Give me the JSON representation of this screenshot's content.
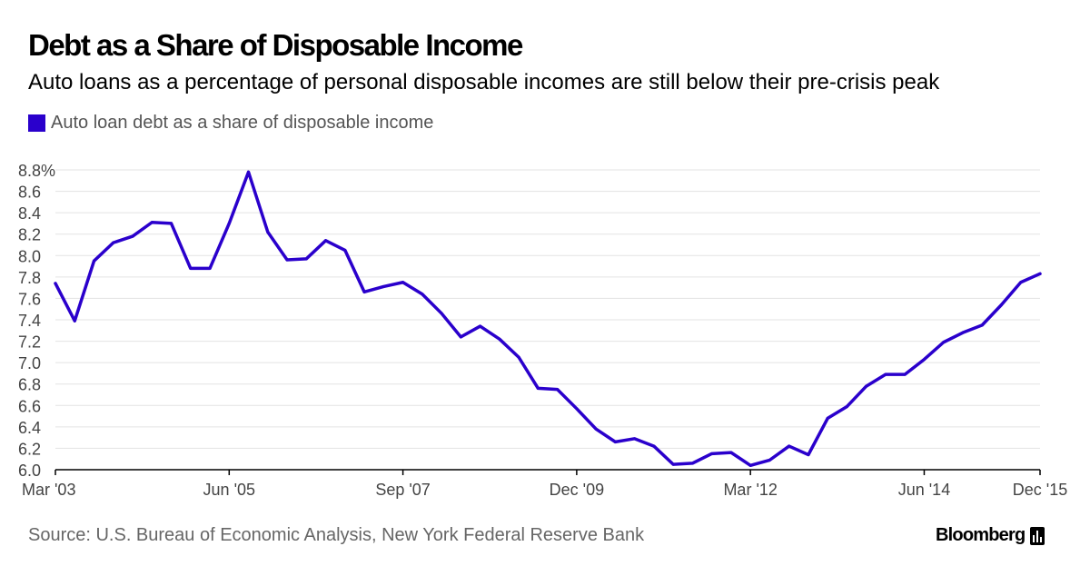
{
  "title": "Debt as a Share of Disposable Income",
  "subtitle": "Auto loans as a percentage of personal disposable incomes are still below their pre-crisis peak",
  "colors": {
    "series": "#2a00cc",
    "grid": "#e3e3e3",
    "axis": "#000000",
    "tick_text": "#444444"
  },
  "source": "Source: U.S. Bureau of Economic Analysis, New York Federal Reserve Bank",
  "brand": {
    "name": "Bloomberg",
    "icon": "bar-chart-icon"
  },
  "chart_data": {
    "type": "line",
    "title": "Debt as a Share of Disposable Income",
    "xlabel": "",
    "ylabel": "",
    "ylim": [
      6.0,
      8.8
    ],
    "y_ticks": [
      {
        "value": 6.0,
        "label": "6.0"
      },
      {
        "value": 6.2,
        "label": "6.2"
      },
      {
        "value": 6.4,
        "label": "6.4"
      },
      {
        "value": 6.6,
        "label": "6.6"
      },
      {
        "value": 6.8,
        "label": "6.8"
      },
      {
        "value": 7.0,
        "label": "7.0"
      },
      {
        "value": 7.2,
        "label": "7.2"
      },
      {
        "value": 7.4,
        "label": "7.4"
      },
      {
        "value": 7.6,
        "label": "7.6"
      },
      {
        "value": 7.8,
        "label": "7.8"
      },
      {
        "value": 8.0,
        "label": "8.0"
      },
      {
        "value": 8.2,
        "label": "8.2"
      },
      {
        "value": 8.4,
        "label": "8.4"
      },
      {
        "value": 8.6,
        "label": "8.6"
      },
      {
        "value": 8.8,
        "label": "8.8%"
      }
    ],
    "x_ticks": [
      {
        "index": 0,
        "label": "Mar '03"
      },
      {
        "index": 9,
        "label": "Jun '05"
      },
      {
        "index": 18,
        "label": "Sep '07"
      },
      {
        "index": 27,
        "label": "Dec '09"
      },
      {
        "index": 36,
        "label": "Mar '12"
      },
      {
        "index": 45,
        "label": "Jun '14"
      },
      {
        "index": 51,
        "label": "Dec '15"
      }
    ],
    "legend": [
      "Auto loan debt as a share of disposable income"
    ],
    "legend_position": "top-left",
    "grid": true,
    "series": [
      {
        "name": "Auto loan debt as a share of disposable income",
        "frequency": "quarterly",
        "start": "Mar '03",
        "end": "Dec '15",
        "values": [
          7.74,
          7.39,
          7.95,
          8.12,
          8.18,
          8.31,
          8.3,
          7.88,
          7.88,
          8.3,
          8.78,
          8.22,
          7.96,
          7.97,
          8.14,
          8.05,
          7.66,
          7.71,
          7.75,
          7.64,
          7.46,
          7.24,
          7.34,
          7.22,
          7.05,
          6.76,
          6.75,
          6.57,
          6.38,
          6.26,
          6.29,
          6.22,
          6.05,
          6.06,
          6.15,
          6.16,
          6.04,
          6.09,
          6.22,
          6.14,
          6.48,
          6.59,
          6.78,
          6.89,
          6.89,
          7.03,
          7.19,
          7.28,
          7.35,
          7.54,
          7.75,
          7.83
        ]
      }
    ]
  }
}
